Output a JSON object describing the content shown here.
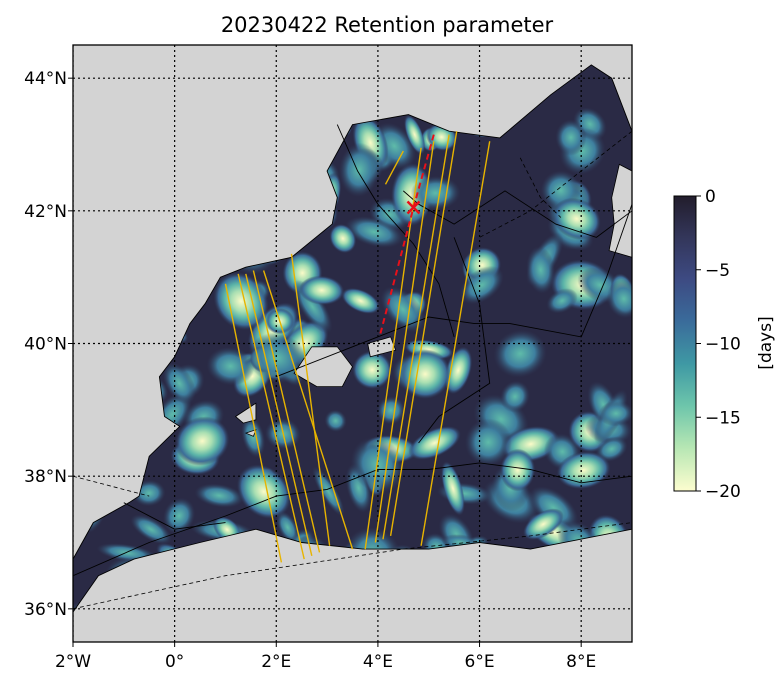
{
  "title": "20230422 Retention parameter",
  "colors": {
    "land": "#d3d3d3",
    "sea_base": "#2a2a45",
    "track": "#e8b400",
    "path": "#e8101a",
    "border": "#000000"
  },
  "chart_data": {
    "type": "heatmap",
    "title": "20230422 Retention parameter",
    "lon_range": [
      -2,
      9
    ],
    "lat_range": [
      35.5,
      44.5
    ],
    "x_ticks": [
      {
        "value": -2,
        "label": "2°W"
      },
      {
        "value": 0,
        "label": "0°"
      },
      {
        "value": 2,
        "label": "2°E"
      },
      {
        "value": 4,
        "label": "4°E"
      },
      {
        "value": 6,
        "label": "6°E"
      },
      {
        "value": 8,
        "label": "8°E"
      }
    ],
    "y_ticks": [
      {
        "value": 36,
        "label": "36°N"
      },
      {
        "value": 38,
        "label": "38°N"
      },
      {
        "value": 40,
        "label": "40°N"
      },
      {
        "value": 42,
        "label": "42°N"
      },
      {
        "value": 44,
        "label": "44°N"
      }
    ],
    "grid": true,
    "colorbar": {
      "label": "[days]",
      "range": [
        -20,
        0
      ],
      "ticks": [
        {
          "value": 0,
          "label": "0"
        },
        {
          "value": -5,
          "label": "−5"
        },
        {
          "value": -10,
          "label": "−10"
        },
        {
          "value": -15,
          "label": "−15"
        },
        {
          "value": -20,
          "label": "−20"
        }
      ],
      "colormap": [
        "#fdfdcf",
        "#b5e6b3",
        "#6dc5ab",
        "#3f99a4",
        "#3a6a9a",
        "#3d4a82",
        "#33365a",
        "#211c2a"
      ]
    },
    "sea_polygon": [
      [
        -2.0,
        35.95
      ],
      [
        -1.5,
        36.5
      ],
      [
        -0.8,
        36.75
      ],
      [
        0.5,
        37.0
      ],
      [
        1.6,
        37.2
      ],
      [
        2.5,
        37.0
      ],
      [
        3.7,
        36.9
      ],
      [
        5.0,
        36.9
      ],
      [
        6.0,
        37.0
      ],
      [
        7.0,
        36.9
      ],
      [
        9.0,
        37.2
      ],
      [
        9.0,
        43.2
      ],
      [
        8.6,
        44.0
      ],
      [
        8.2,
        44.2
      ],
      [
        7.4,
        43.75
      ],
      [
        6.4,
        43.1
      ],
      [
        5.4,
        43.2
      ],
      [
        4.6,
        43.45
      ],
      [
        3.5,
        43.3
      ],
      [
        3.0,
        42.6
      ],
      [
        3.2,
        42.2
      ],
      [
        3.1,
        41.8
      ],
      [
        2.3,
        41.3
      ],
      [
        1.4,
        41.15
      ],
      [
        0.9,
        41.0
      ],
      [
        0.6,
        40.6
      ],
      [
        0.3,
        40.3
      ],
      [
        0.0,
        39.8
      ],
      [
        -0.3,
        39.5
      ],
      [
        -0.2,
        38.9
      ],
      [
        0.1,
        38.75
      ],
      [
        -0.5,
        38.3
      ],
      [
        -0.7,
        37.7
      ],
      [
        -0.9,
        37.6
      ],
      [
        -1.6,
        37.3
      ],
      [
        -2.0,
        36.75
      ]
    ],
    "islands": [
      {
        "name": "Mallorca",
        "polygon": [
          [
            2.35,
            39.55
          ],
          [
            2.7,
            39.95
          ],
          [
            3.2,
            39.95
          ],
          [
            3.5,
            39.65
          ],
          [
            3.3,
            39.35
          ],
          [
            2.8,
            39.35
          ]
        ]
      },
      {
        "name": "Menorca",
        "polygon": [
          [
            3.8,
            40.0
          ],
          [
            4.25,
            40.1
          ],
          [
            4.35,
            39.9
          ],
          [
            3.85,
            39.8
          ]
        ]
      },
      {
        "name": "Ibiza",
        "polygon": [
          [
            1.2,
            38.9
          ],
          [
            1.6,
            39.1
          ],
          [
            1.6,
            38.85
          ],
          [
            1.35,
            38.8
          ]
        ]
      },
      {
        "name": "Formentera",
        "polygon": [
          [
            1.4,
            38.65
          ],
          [
            1.6,
            38.7
          ],
          [
            1.55,
            38.6
          ]
        ]
      },
      {
        "name": "Corsica",
        "polygon": [
          [
            8.55,
            41.4
          ],
          [
            9.0,
            41.3
          ],
          [
            9.0,
            42.6
          ],
          [
            8.75,
            42.7
          ],
          [
            8.6,
            42.2
          ],
          [
            8.65,
            41.8
          ]
        ]
      }
    ],
    "tracks": [
      [
        [
          1.0,
          40.9
        ],
        [
          2.1,
          36.7
        ]
      ],
      [
        [
          1.25,
          41.05
        ],
        [
          2.55,
          36.75
        ]
      ],
      [
        [
          1.4,
          41.05
        ],
        [
          2.7,
          36.8
        ]
      ],
      [
        [
          1.55,
          41.1
        ],
        [
          2.85,
          36.85
        ]
      ],
      [
        [
          2.3,
          41.35
        ],
        [
          3.05,
          36.95
        ]
      ],
      [
        [
          1.75,
          41.1
        ],
        [
          3.5,
          36.9
        ]
      ],
      [
        [
          4.85,
          42.95
        ],
        [
          3.75,
          36.9
        ]
      ],
      [
        [
          5.1,
          43.05
        ],
        [
          3.95,
          37.0
        ]
      ],
      [
        [
          5.4,
          43.15
        ],
        [
          4.1,
          37.05
        ]
      ],
      [
        [
          5.55,
          43.2
        ],
        [
          4.25,
          37.1
        ]
      ],
      [
        [
          6.2,
          43.05
        ],
        [
          4.85,
          36.95
        ]
      ],
      [
        [
          4.5,
          42.9
        ],
        [
          4.15,
          42.4
        ]
      ]
    ],
    "path": {
      "points": [
        [
          5.1,
          43.15
        ],
        [
          4.7,
          42.05
        ],
        [
          4.05,
          40.15
        ]
      ],
      "marker": [
        4.7,
        42.05
      ]
    },
    "borders": [
      [
        [
          9.0,
          42.0
        ],
        [
          8.3,
          41.6
        ],
        [
          7.5,
          41.8
        ],
        [
          6.5,
          42.3
        ],
        [
          5.5,
          41.8
        ],
        [
          4.8,
          42.1
        ],
        [
          4.5,
          42.3
        ]
      ],
      [
        [
          9.0,
          42.1
        ],
        [
          8.5,
          41.0
        ],
        [
          8.0,
          40.1
        ],
        [
          6.6,
          40.3
        ],
        [
          5.9,
          40.3
        ],
        [
          5.0,
          40.4
        ],
        [
          3.5,
          39.95
        ],
        [
          2.0,
          39.5
        ]
      ],
      [
        [
          9.0,
          38.0
        ],
        [
          8.0,
          37.9
        ],
        [
          7.0,
          38.1
        ],
        [
          6.0,
          38.2
        ],
        [
          5.0,
          38.1
        ],
        [
          4.0,
          38.1
        ],
        [
          3.0,
          37.8
        ],
        [
          2.0,
          37.7
        ],
        [
          1.0,
          37.4
        ],
        [
          -0.5,
          37.0
        ],
        [
          -2.0,
          36.5
        ]
      ],
      [
        [
          5.5,
          41.6
        ],
        [
          6.0,
          40.6
        ],
        [
          6.2,
          39.4
        ],
        [
          5.2,
          38.9
        ],
        [
          4.8,
          38.5
        ]
      ],
      [
        [
          3.2,
          43.3
        ],
        [
          3.6,
          42.6
        ],
        [
          4.0,
          42.1
        ],
        [
          4.7,
          41.5
        ],
        [
          5.2,
          40.9
        ],
        [
          5.5,
          40.1
        ]
      ],
      [
        [
          -1.0,
          37.6
        ],
        [
          0.0,
          37.2
        ],
        [
          1.0,
          37.3
        ]
      ]
    ],
    "dashed_borders": [
      [
        [
          -2.0,
          36.0
        ],
        [
          1.0,
          36.5
        ],
        [
          4.5,
          36.9
        ],
        [
          7.0,
          37.1
        ],
        [
          9.0,
          37.3
        ]
      ],
      [
        [
          9.0,
          43.2
        ],
        [
          8.0,
          42.6
        ],
        [
          7.0,
          42.0
        ],
        [
          6.0,
          41.6
        ]
      ],
      [
        [
          6.8,
          42.8
        ],
        [
          7.2,
          42.2
        ],
        [
          7.6,
          41.9
        ]
      ],
      [
        [
          -2.0,
          38.0
        ],
        [
          -0.5,
          37.7
        ]
      ]
    ]
  }
}
